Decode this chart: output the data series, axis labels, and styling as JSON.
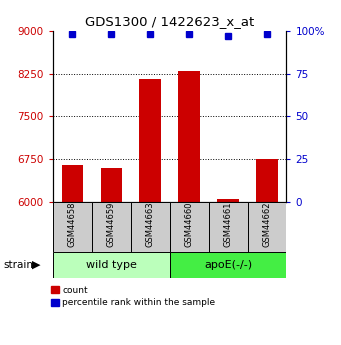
{
  "title": "GDS1300 / 1422623_x_at",
  "samples": [
    "GSM44658",
    "GSM44659",
    "GSM44663",
    "GSM44660",
    "GSM44661",
    "GSM44662"
  ],
  "count_values": [
    6650,
    6600,
    8150,
    8300,
    6050,
    6750
  ],
  "percentile_values": [
    98,
    98,
    98,
    98,
    97,
    98
  ],
  "ylim_left": [
    6000,
    9000
  ],
  "ylim_right": [
    0,
    100
  ],
  "yticks_left": [
    6000,
    6750,
    7500,
    8250,
    9000
  ],
  "ytick_labels_left": [
    "6000",
    "6750",
    "7500",
    "8250",
    "9000"
  ],
  "yticks_right": [
    0,
    25,
    50,
    75,
    100
  ],
  "ytick_labels_right": [
    "0",
    "25",
    "50",
    "75",
    "100%"
  ],
  "bar_color": "#cc0000",
  "dot_color": "#0000cc",
  "wild_type_color": "#bbffbb",
  "apoe_color": "#44ee44",
  "group_box_color": "#cccccc",
  "left_tick_color": "#cc0000",
  "right_tick_color": "#0000cc",
  "grid_ticks": [
    6750,
    7500,
    8250
  ],
  "n_wild": 3,
  "n_apoe": 3
}
